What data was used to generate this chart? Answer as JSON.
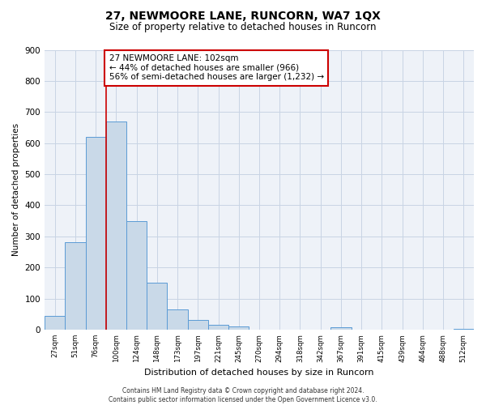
{
  "title": "27, NEWMOORE LANE, RUNCORN, WA7 1QX",
  "subtitle": "Size of property relative to detached houses in Runcorn",
  "xlabel": "Distribution of detached houses by size in Runcorn",
  "ylabel": "Number of detached properties",
  "bin_labels": [
    "27sqm",
    "51sqm",
    "76sqm",
    "100sqm",
    "124sqm",
    "148sqm",
    "173sqm",
    "197sqm",
    "221sqm",
    "245sqm",
    "270sqm",
    "294sqm",
    "318sqm",
    "342sqm",
    "367sqm",
    "391sqm",
    "415sqm",
    "439sqm",
    "464sqm",
    "488sqm",
    "512sqm"
  ],
  "bar_values": [
    43,
    280,
    620,
    670,
    348,
    150,
    65,
    30,
    16,
    10,
    0,
    0,
    0,
    0,
    8,
    0,
    0,
    0,
    0,
    0,
    3
  ],
  "bar_color": "#c9d9e8",
  "bar_edge_color": "#5b9bd5",
  "vline_x_index": 3,
  "vline_color": "#cc0000",
  "annotation_text": "27 NEWMOORE LANE: 102sqm\n← 44% of detached houses are smaller (966)\n56% of semi-detached houses are larger (1,232) →",
  "annotation_box_color": "#ffffff",
  "annotation_box_edge_color": "#cc0000",
  "ylim": [
    0,
    900
  ],
  "yticks": [
    0,
    100,
    200,
    300,
    400,
    500,
    600,
    700,
    800,
    900
  ],
  "grid_color": "#c8d4e4",
  "background_color": "#eef2f8",
  "footer": "Contains HM Land Registry data © Crown copyright and database right 2024.\nContains public sector information licensed under the Open Government Licence v3.0."
}
